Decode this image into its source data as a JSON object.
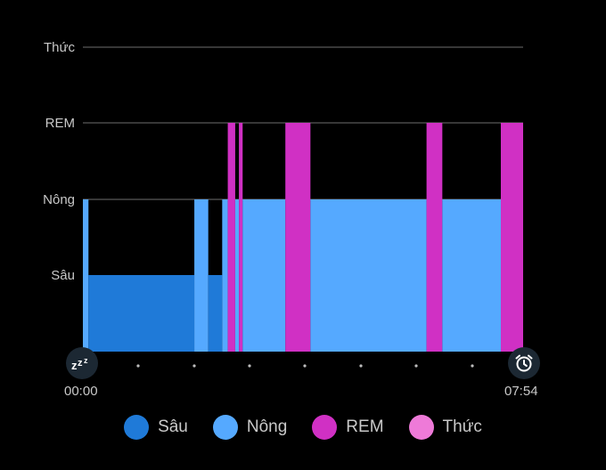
{
  "chart_data": {
    "type": "bar",
    "y_levels": [
      "Sâu",
      "Nông",
      "REM",
      "Thức"
    ],
    "x_start": "00:00",
    "x_end": "07:54",
    "x_range_minutes": [
      0,
      474
    ],
    "segments": [
      {
        "stage": "Nông",
        "start_min": 0,
        "end_min": 6
      },
      {
        "stage": "Sâu",
        "start_min": 6,
        "end_min": 120
      },
      {
        "stage": "Nông",
        "start_min": 120,
        "end_min": 135
      },
      {
        "stage": "Sâu",
        "start_min": 135,
        "end_min": 150
      },
      {
        "stage": "Nông",
        "start_min": 150,
        "end_min": 156
      },
      {
        "stage": "REM",
        "start_min": 156,
        "end_min": 164
      },
      {
        "stage": "Nông",
        "start_min": 164,
        "end_min": 168
      },
      {
        "stage": "REM",
        "start_min": 168,
        "end_min": 172
      },
      {
        "stage": "Nông",
        "start_min": 172,
        "end_min": 218
      },
      {
        "stage": "REM",
        "start_min": 218,
        "end_min": 245
      },
      {
        "stage": "Nông",
        "start_min": 245,
        "end_min": 370
      },
      {
        "stage": "REM",
        "start_min": 370,
        "end_min": 387
      },
      {
        "stage": "Nông",
        "start_min": 387,
        "end_min": 450
      },
      {
        "stage": "REM",
        "start_min": 450,
        "end_min": 474
      }
    ],
    "grid": true,
    "legend_position": "bottom"
  },
  "colors": {
    "Sâu": "#1f7ad8",
    "Nông": "#55a9ff",
    "REM": "#d030c4",
    "Thức": "#ee7ad8",
    "grid": "#6e6e6e",
    "background": "#000000"
  },
  "icons": {
    "start": "sleep-zzz-icon",
    "end": "alarm-clock-icon"
  },
  "legend": [
    {
      "label": "Sâu",
      "color": "#1f7ad8"
    },
    {
      "label": "Nông",
      "color": "#55a9ff"
    },
    {
      "label": "REM",
      "color": "#d030c4"
    },
    {
      "label": "Thức",
      "color": "#ee7ad8"
    }
  ]
}
